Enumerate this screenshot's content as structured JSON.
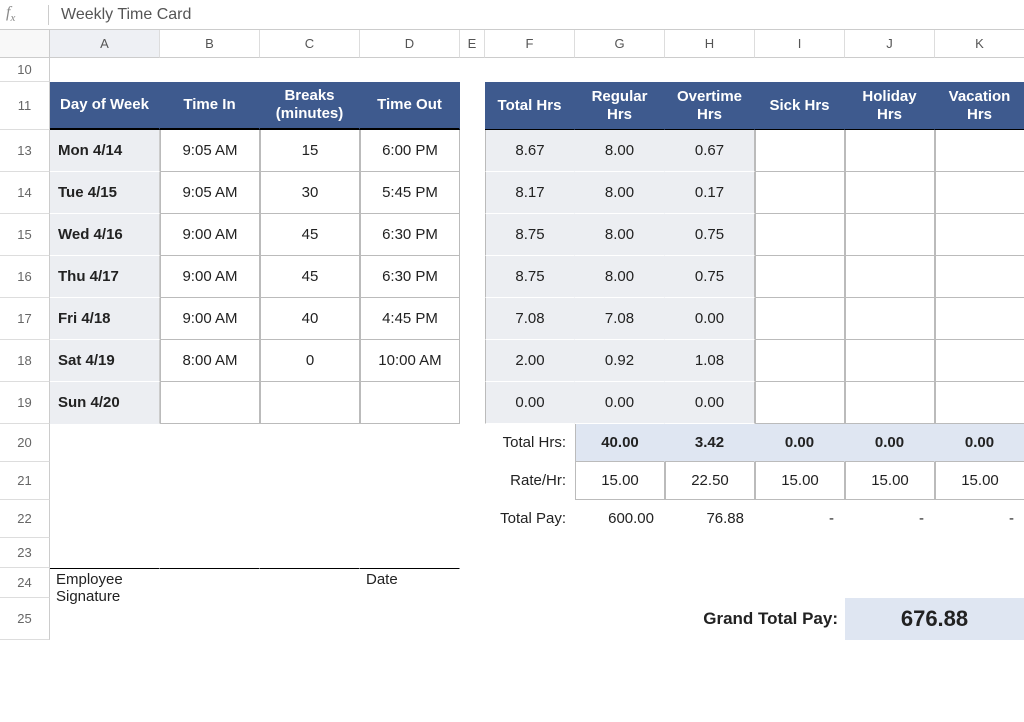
{
  "formula_bar": {
    "fx": "fx",
    "text": "Weekly Time Card"
  },
  "columns": [
    "A",
    "B",
    "C",
    "D",
    "E",
    "F",
    "G",
    "H",
    "I",
    "J",
    "K"
  ],
  "selected_col": "A",
  "row_numbers": [
    "10",
    "11",
    "13",
    "14",
    "15",
    "16",
    "17",
    "18",
    "19",
    "20",
    "21",
    "22",
    "23",
    "24",
    "25"
  ],
  "headers_left": [
    "Day of Week",
    "Time In",
    "Breaks (minutes)",
    "Time Out"
  ],
  "headers_right": [
    "Total Hrs",
    "Regular Hrs",
    "Overtime Hrs",
    "Sick Hrs",
    "Holiday Hrs",
    "Vacation Hrs"
  ],
  "days": [
    {
      "label": "Mon 4/14",
      "in": "9:05 AM",
      "breaks": "15",
      "out": "6:00 PM",
      "total": "8.67",
      "reg": "8.00",
      "ot": "0.67"
    },
    {
      "label": "Tue 4/15",
      "in": "9:05 AM",
      "breaks": "30",
      "out": "5:45 PM",
      "total": "8.17",
      "reg": "8.00",
      "ot": "0.17"
    },
    {
      "label": "Wed 4/16",
      "in": "9:00 AM",
      "breaks": "45",
      "out": "6:30 PM",
      "total": "8.75",
      "reg": "8.00",
      "ot": "0.75"
    },
    {
      "label": "Thu 4/17",
      "in": "9:00 AM",
      "breaks": "45",
      "out": "6:30 PM",
      "total": "8.75",
      "reg": "8.00",
      "ot": "0.75"
    },
    {
      "label": "Fri 4/18",
      "in": "9:00 AM",
      "breaks": "40",
      "out": "4:45 PM",
      "total": "7.08",
      "reg": "7.08",
      "ot": "0.00"
    },
    {
      "label": "Sat 4/19",
      "in": "8:00 AM",
      "breaks": "0",
      "out": "10:00 AM",
      "total": "2.00",
      "reg": "0.92",
      "ot": "1.08"
    },
    {
      "label": "Sun 4/20",
      "in": "",
      "breaks": "",
      "out": "",
      "total": "0.00",
      "reg": "0.00",
      "ot": "0.00"
    }
  ],
  "summary": {
    "total_hrs_label": "Total Hrs:",
    "rate_label": "Rate/Hr:",
    "total_pay_label": "Total Pay:",
    "totals": {
      "reg": "40.00",
      "ot": "3.42",
      "sick": "0.00",
      "hol": "0.00",
      "vac": "0.00"
    },
    "rates": {
      "reg": "15.00",
      "ot": "22.50",
      "sick": "15.00",
      "hol": "15.00",
      "vac": "15.00"
    },
    "pays": {
      "reg": "600.00",
      "ot": "76.88",
      "sick": "-",
      "hol": "-",
      "vac": "-"
    }
  },
  "signature": {
    "employee": "Employee Signature",
    "date": "Date"
  },
  "grand": {
    "label": "Grand Total Pay:",
    "value": "676.88"
  },
  "colors": {
    "header_bg": "#3e5a8e",
    "shade": "#eceef2",
    "total_shade": "#dfe6f2"
  }
}
